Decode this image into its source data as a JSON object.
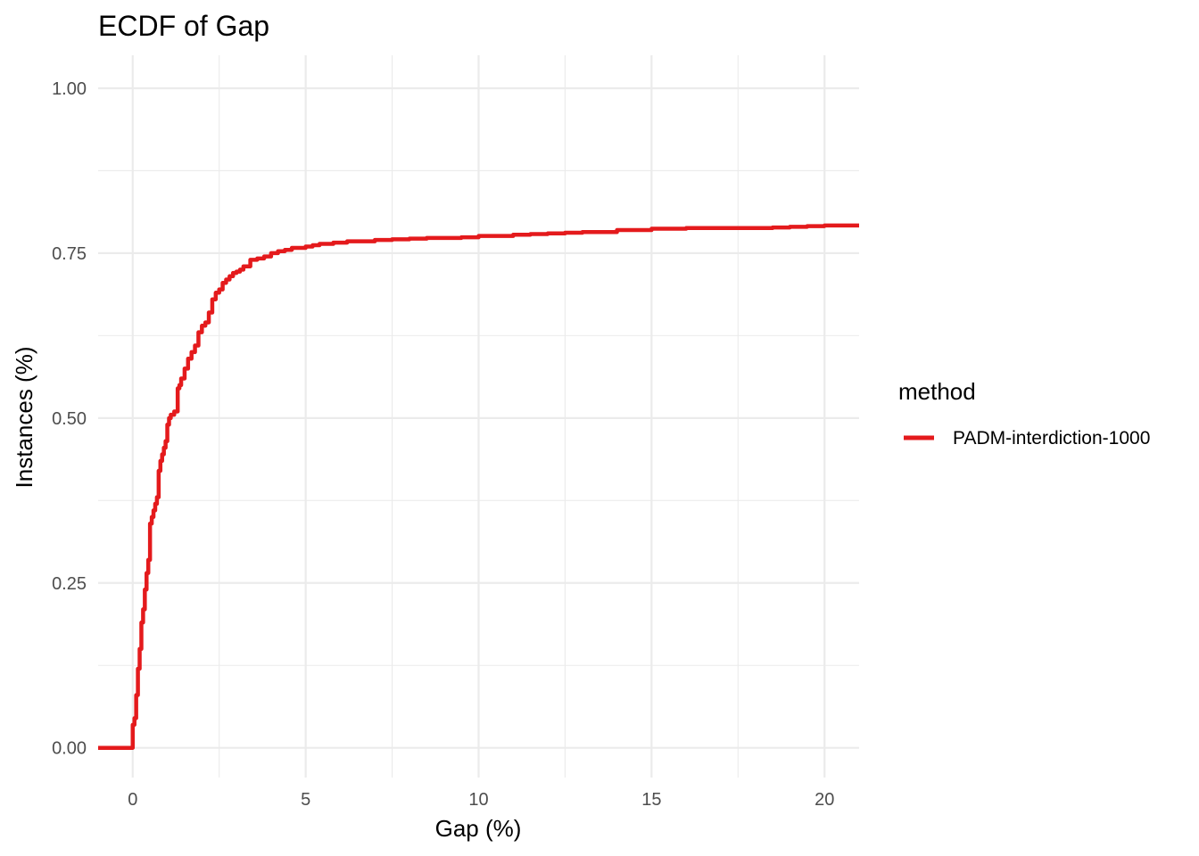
{
  "chart_data": {
    "type": "line",
    "title": "ECDF of Gap",
    "xlabel": "Gap (%)",
    "ylabel": "Instances (%)",
    "xlim": [
      -1,
      21
    ],
    "ylim": [
      -0.045,
      1.05
    ],
    "x_ticks": [
      0,
      5,
      10,
      15,
      20
    ],
    "x_tick_labels": [
      "0",
      "5",
      "10",
      "15",
      "20"
    ],
    "y_ticks": [
      0,
      0.25,
      0.5,
      0.75,
      1.0
    ],
    "y_tick_labels": [
      "0.00",
      "0.25",
      "0.50",
      "0.75",
      "1.00"
    ],
    "grid": true,
    "legend": {
      "title": "method",
      "position": "right"
    },
    "series": [
      {
        "name": "PADM-interdiction-1000",
        "color": "#e41a1c",
        "x": [
          -1.0,
          0.0,
          0.0,
          0.05,
          0.1,
          0.15,
          0.2,
          0.25,
          0.3,
          0.35,
          0.4,
          0.45,
          0.5,
          0.55,
          0.6,
          0.65,
          0.7,
          0.75,
          0.8,
          0.85,
          0.9,
          0.95,
          1.0,
          1.0,
          1.05,
          1.1,
          1.2,
          1.3,
          1.35,
          1.4,
          1.5,
          1.6,
          1.7,
          1.8,
          1.9,
          2.0,
          2.1,
          2.2,
          2.3,
          2.4,
          2.5,
          2.6,
          2.7,
          2.8,
          2.9,
          3.0,
          3.1,
          3.2,
          3.4,
          3.6,
          3.8,
          4.0,
          4.2,
          4.4,
          4.6,
          5.0,
          5.2,
          5.4,
          5.8,
          6.2,
          7.0,
          7.5,
          8.0,
          8.5,
          9.5,
          10.0,
          11.0,
          11.5,
          12.0,
          12.5,
          13.0,
          14.0,
          15.0,
          16.0,
          17.0,
          18.0,
          18.5,
          19.0,
          19.5,
          20.0,
          21.0
        ],
        "y": [
          0.0,
          0.0,
          0.035,
          0.045,
          0.08,
          0.12,
          0.15,
          0.19,
          0.21,
          0.24,
          0.265,
          0.285,
          0.34,
          0.35,
          0.36,
          0.37,
          0.38,
          0.42,
          0.435,
          0.445,
          0.455,
          0.465,
          0.475,
          0.49,
          0.5,
          0.505,
          0.51,
          0.545,
          0.55,
          0.56,
          0.575,
          0.59,
          0.6,
          0.61,
          0.63,
          0.64,
          0.645,
          0.66,
          0.68,
          0.69,
          0.695,
          0.705,
          0.71,
          0.715,
          0.72,
          0.722,
          0.725,
          0.73,
          0.74,
          0.742,
          0.745,
          0.75,
          0.753,
          0.755,
          0.758,
          0.76,
          0.762,
          0.764,
          0.766,
          0.768,
          0.77,
          0.771,
          0.772,
          0.773,
          0.774,
          0.776,
          0.778,
          0.779,
          0.78,
          0.781,
          0.782,
          0.785,
          0.787,
          0.788,
          0.788,
          0.788,
          0.789,
          0.79,
          0.791,
          0.792,
          0.792
        ]
      }
    ]
  }
}
